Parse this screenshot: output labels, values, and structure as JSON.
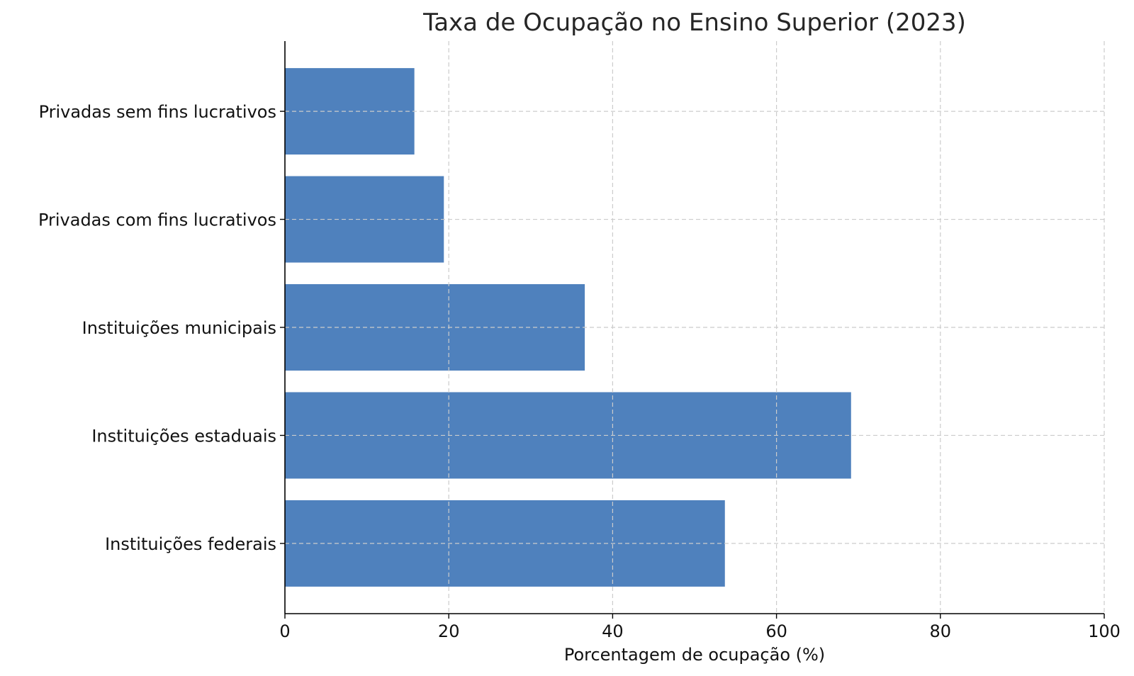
{
  "chart_data": {
    "type": "bar",
    "orientation": "horizontal",
    "title": "Taxa de Ocupação no Ensino Superior (2023)",
    "xlabel": "Porcentagem de ocupação (%)",
    "ylabel": "",
    "categories": [
      "Instituições federais",
      "Instituições estaduais",
      "Instituições municipais",
      "Privadas com fins lucrativos",
      "Privadas sem fins lucrativos"
    ],
    "values": [
      53.7,
      69.1,
      36.6,
      19.4,
      15.8
    ],
    "xlim": [
      0,
      100
    ],
    "xticks": [
      0,
      20,
      40,
      60,
      80,
      100
    ],
    "grid": true,
    "bar_color": "#4f81bd",
    "legend": "none"
  }
}
